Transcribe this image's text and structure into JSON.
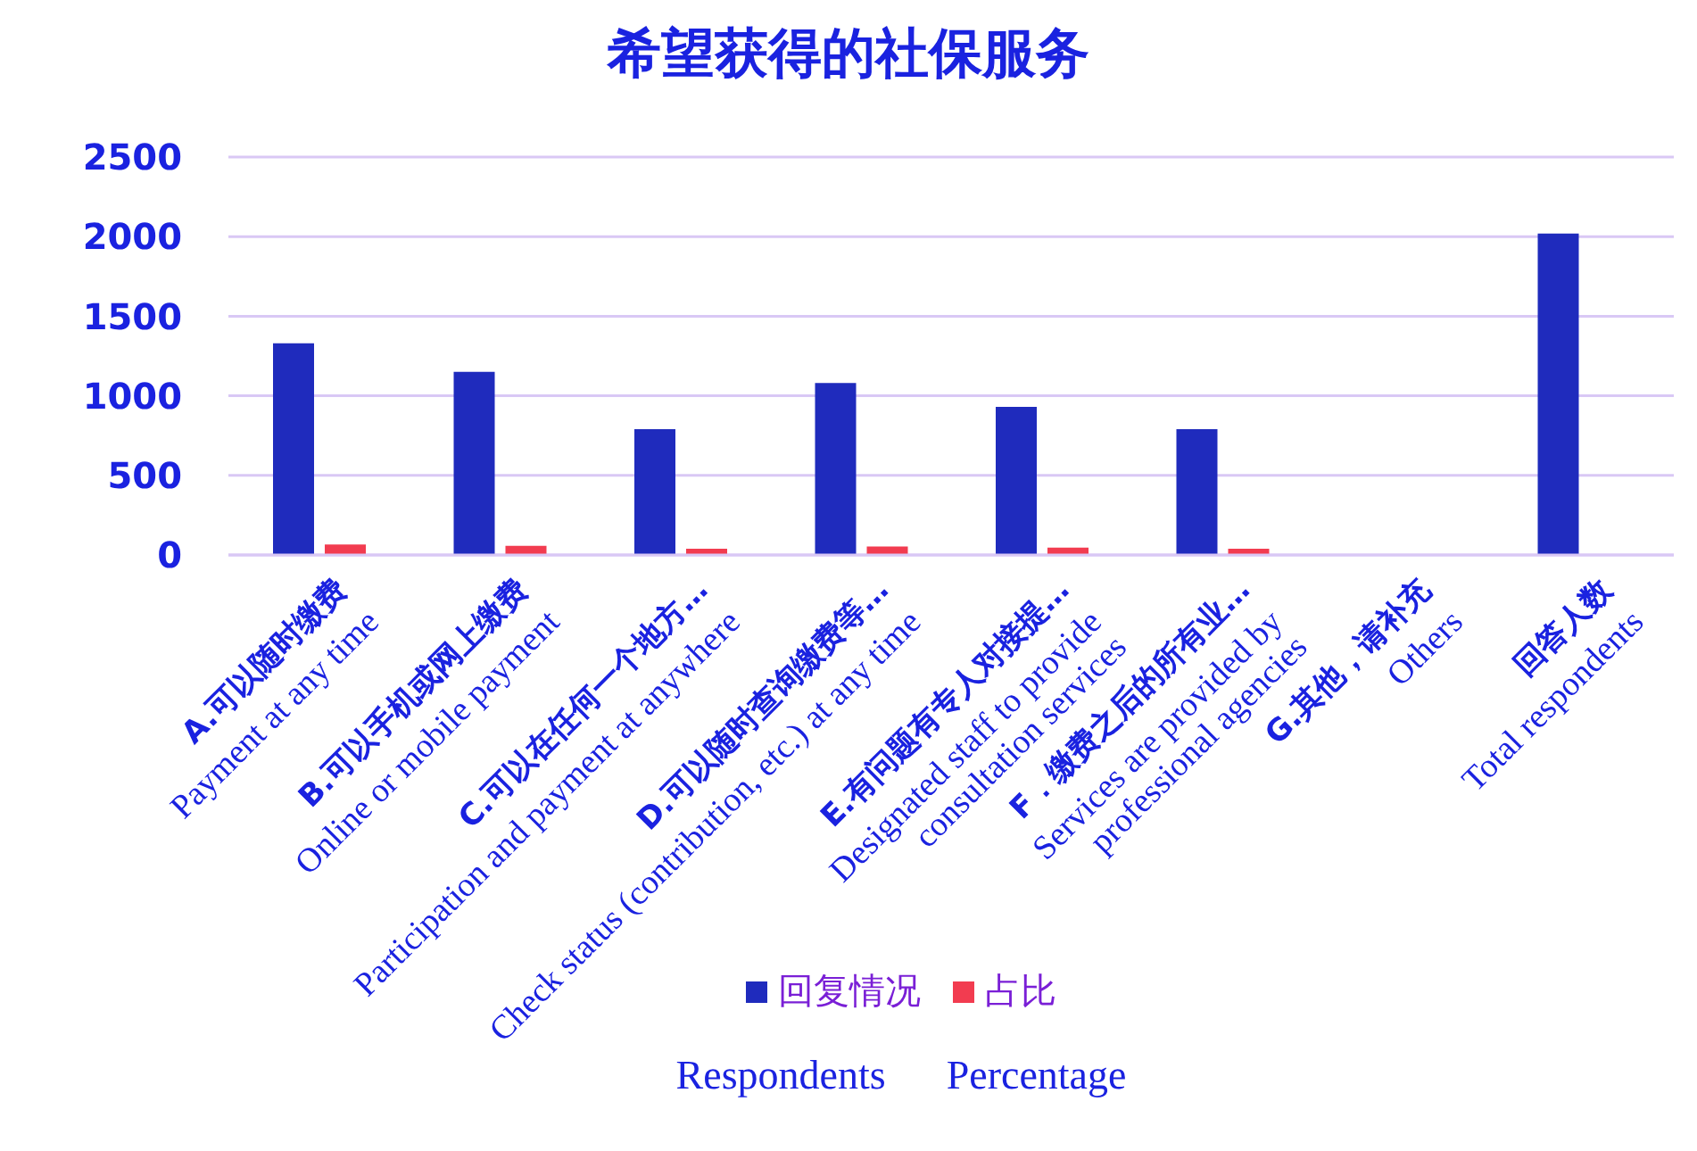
{
  "chart_data": {
    "type": "bar",
    "title": "希望获得的社保服务",
    "categories": [
      "A.可以随时缴费\nPayment at any time",
      "B.可以手机或网上缴费\nOnline or mobile payment",
      "C.可以在任何一个地方…\nParticipation and payment at anywhere",
      "D.可以随时查询缴费等…\nCheck status (contribution, etc.) at any time",
      "E.有问题有专人对接提…\nDesignated staff to provide\nconsultation services",
      "F．缴费之后的所有业…\nServices  are provided by\nprofessional agencies",
      "G.其他，请补充\nOthers",
      "回答人数\nTotal respondents"
    ],
    "series": [
      {
        "name": "回复情况",
        "color": "#1f2bbd",
        "values": [
          1330,
          1150,
          790,
          1080,
          930,
          790,
          0,
          2020
        ]
      },
      {
        "name": "占比",
        "color": "#f23c50",
        "values": [
          66,
          57,
          39,
          53,
          46,
          39,
          0,
          null
        ]
      }
    ],
    "ylim": [
      0,
      2500
    ],
    "yticks": [
      0,
      500,
      1000,
      1500,
      2000,
      2500
    ],
    "grid": "y",
    "legend": "bottom",
    "annotations": [
      "Respondents",
      "Percentage"
    ]
  }
}
